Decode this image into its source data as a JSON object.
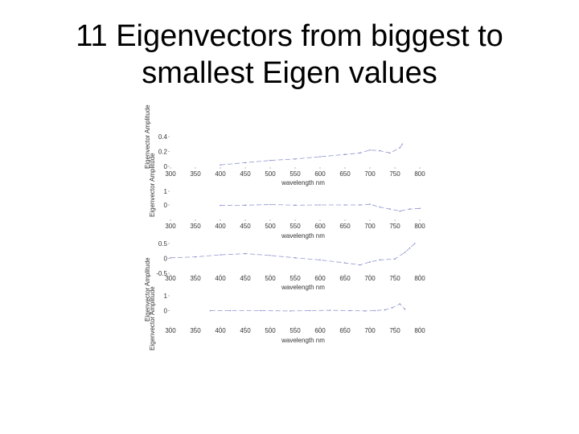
{
  "slide": {
    "title_line1": "11 Eigenvectors from biggest to",
    "title_line2": "smallest Eigen values"
  },
  "colors": {
    "line": "#7f86c8",
    "axis": "#888888",
    "text": "#333333"
  },
  "chart_data": [
    {
      "type": "line",
      "xlabel": "wavelength nm",
      "ylabel": "Eigenvector Amplitude",
      "xlim": [
        300,
        800
      ],
      "ylim": [
        0,
        0.4
      ],
      "x_ticks": [
        "300",
        "350",
        "400",
        "450",
        "500",
        "550",
        "600",
        "650",
        "700",
        "750",
        "800"
      ],
      "y_ticks": [
        {
          "value": 0,
          "label": "0"
        },
        {
          "value": 0.2,
          "label": "0.2"
        },
        {
          "value": 0.4,
          "label": "0.4"
        }
      ],
      "series": [
        {
          "x": [
            400,
            450,
            500,
            550,
            600,
            650,
            680,
            700,
            720,
            740,
            760,
            765
          ],
          "y": [
            0.02,
            0.05,
            0.08,
            0.1,
            0.13,
            0.16,
            0.18,
            0.22,
            0.21,
            0.18,
            0.25,
            0.3
          ]
        }
      ]
    },
    {
      "type": "line",
      "xlabel": "wavelength nm",
      "ylabel": "Eigenvector Amplitude",
      "xlim": [
        300,
        800
      ],
      "ylim": [
        -1,
        1
      ],
      "x_ticks": [
        "300",
        "350",
        "400",
        "450",
        "500",
        "550",
        "600",
        "650",
        "700",
        "750",
        "800"
      ],
      "y_ticks": [
        {
          "value": 1,
          "label": "1"
        },
        {
          "value": 0,
          "label": "0"
        }
      ],
      "series": [
        {
          "x": [
            400,
            450,
            500,
            550,
            600,
            650,
            680,
            700,
            720,
            740,
            760,
            780,
            800
          ],
          "y": [
            -0.03,
            -0.02,
            0.03,
            -0.02,
            0.0,
            0.0,
            0.0,
            0.05,
            -0.15,
            -0.3,
            -0.45,
            -0.3,
            -0.25
          ]
        }
      ]
    },
    {
      "type": "line",
      "xlabel": "wavelength nm",
      "ylabel": "Eigenvector Amplitude",
      "xlim": [
        300,
        800
      ],
      "ylim": [
        -0.5,
        0.5
      ],
      "x_ticks": [
        "300",
        "350",
        "400",
        "450",
        "500",
        "550",
        "600",
        "650",
        "700",
        "750",
        "800"
      ],
      "y_ticks": [
        {
          "value": 0.5,
          "label": "0.5"
        },
        {
          "value": 0,
          "label": "0"
        },
        {
          "value": -0.5,
          "label": "-0.5"
        }
      ],
      "series": [
        {
          "x": [
            300,
            350,
            400,
            450,
            500,
            550,
            600,
            650,
            680,
            700,
            720,
            750,
            770,
            780,
            790
          ],
          "y": [
            0.02,
            0.05,
            0.12,
            0.16,
            0.1,
            0.02,
            -0.05,
            -0.15,
            -0.22,
            -0.12,
            -0.05,
            -0.02,
            0.2,
            0.35,
            0.5
          ]
        }
      ]
    },
    {
      "type": "line",
      "xlabel": "wavelength nm",
      "ylabel": "Eigenvector Amplitude",
      "xlim": [
        300,
        800
      ],
      "ylim": [
        -1,
        1
      ],
      "x_ticks": [
        "300",
        "350",
        "400",
        "450",
        "500",
        "550",
        "600",
        "650",
        "700",
        "750",
        "800"
      ],
      "y_ticks": [
        {
          "value": 1,
          "label": "1"
        },
        {
          "value": 0,
          "label": "0"
        }
      ],
      "series": [
        {
          "x": [
            380,
            420,
            480,
            540,
            580,
            620,
            660,
            690,
            710,
            730,
            745,
            760,
            770
          ],
          "y": [
            0.0,
            0.0,
            0.0,
            -0.02,
            0.0,
            0.02,
            0.0,
            -0.02,
            0.0,
            0.05,
            0.2,
            0.45,
            0.1
          ]
        }
      ]
    }
  ]
}
